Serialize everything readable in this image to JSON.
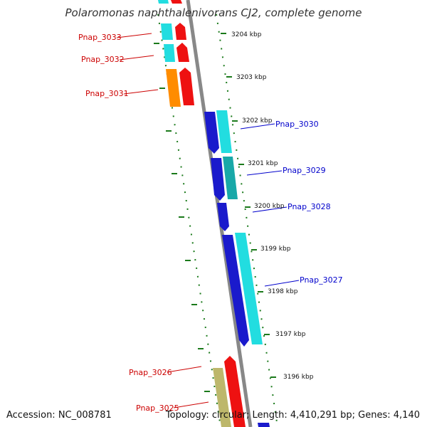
{
  "title": "Polaromonas naphthalenivorans CJ2, complete genome",
  "footer": {
    "accession": "Accession: NC_008781",
    "summary": "Topology: circular; Length: 4,410,291 bp; Genes: 4,140"
  },
  "scale_labels": [
    "3204 kbp",
    "3203 kbp",
    "3202 kbp",
    "3201 kbp",
    "3200 kbp",
    "3199 kbp",
    "3198 kbp",
    "3197 kbp",
    "3196 kbp"
  ],
  "gene_labels": [
    {
      "text": "Pnap_3033",
      "strand": "forward"
    },
    {
      "text": "Pnap_3032",
      "strand": "forward"
    },
    {
      "text": "Pnap_3031",
      "strand": "forward"
    },
    {
      "text": "Pnap_3030",
      "strand": "reverse"
    },
    {
      "text": "Pnap_3029",
      "strand": "reverse"
    },
    {
      "text": "Pnap_3028",
      "strand": "reverse"
    },
    {
      "text": "Pnap_3027",
      "strand": "reverse"
    },
    {
      "text": "Pnap_3026",
      "strand": "forward"
    },
    {
      "text": "Pnap_3025",
      "strand": "forward"
    }
  ],
  "colors": {
    "forward_gene": "#ee1111",
    "reverse_gene": "#1a1acc",
    "cds_cyan": "#22dde0",
    "cds_teal": "#18a8a8",
    "cds_orange": "#ff8c00",
    "cds_khaki": "#bdb76b",
    "backbone": "#888888",
    "ticks": "#1b7a1b",
    "forward_label": "#cc0000",
    "reverse_label": "#0000cc"
  }
}
